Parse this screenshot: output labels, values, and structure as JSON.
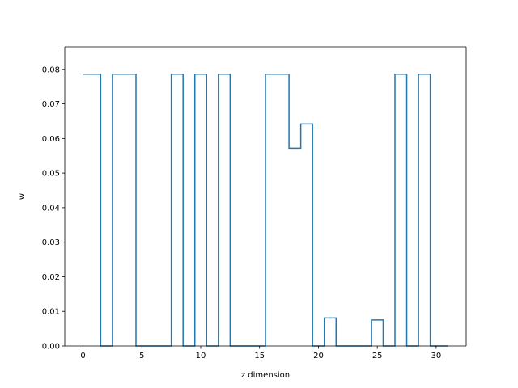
{
  "chart_data": {
    "type": "line",
    "drawstyle": "steps-mid",
    "title": "",
    "xlabel": "z dimension",
    "ylabel": "w",
    "xlim": [
      -1.55,
      32.55
    ],
    "ylim": [
      0.0,
      0.0865
    ],
    "x_ticks": [
      0,
      5,
      10,
      15,
      20,
      25,
      30
    ],
    "x_tick_labels": [
      "0",
      "5",
      "10",
      "15",
      "20",
      "25",
      "30"
    ],
    "y_ticks": [
      0.0,
      0.01,
      0.02,
      0.03,
      0.04,
      0.05,
      0.06,
      0.07,
      0.08
    ],
    "y_tick_labels": [
      "0.00",
      "0.01",
      "0.02",
      "0.03",
      "0.04",
      "0.05",
      "0.06",
      "0.07",
      "0.08"
    ],
    "grid": false,
    "legend": "none",
    "color": "#1f77b4",
    "series": [
      {
        "x": [
          0,
          1,
          2,
          3,
          4,
          5,
          6,
          7,
          8,
          9,
          10,
          11,
          12,
          13,
          14,
          15,
          16,
          17,
          18,
          19,
          20,
          21,
          22,
          23,
          24,
          25,
          26,
          27,
          28,
          29,
          30,
          31
        ],
        "values": [
          0.0786,
          0.0786,
          0.0,
          0.0786,
          0.0786,
          0.0,
          0.0,
          0.0,
          0.0786,
          0.0,
          0.0786,
          0.0,
          0.0786,
          0.0,
          0.0,
          0.0,
          0.0786,
          0.0786,
          0.0572,
          0.0642,
          0.0,
          0.0081,
          0.0,
          0.0,
          0.0,
          0.0075,
          0.0,
          0.0786,
          0.0,
          0.0786,
          0.0,
          0.0
        ]
      }
    ]
  }
}
